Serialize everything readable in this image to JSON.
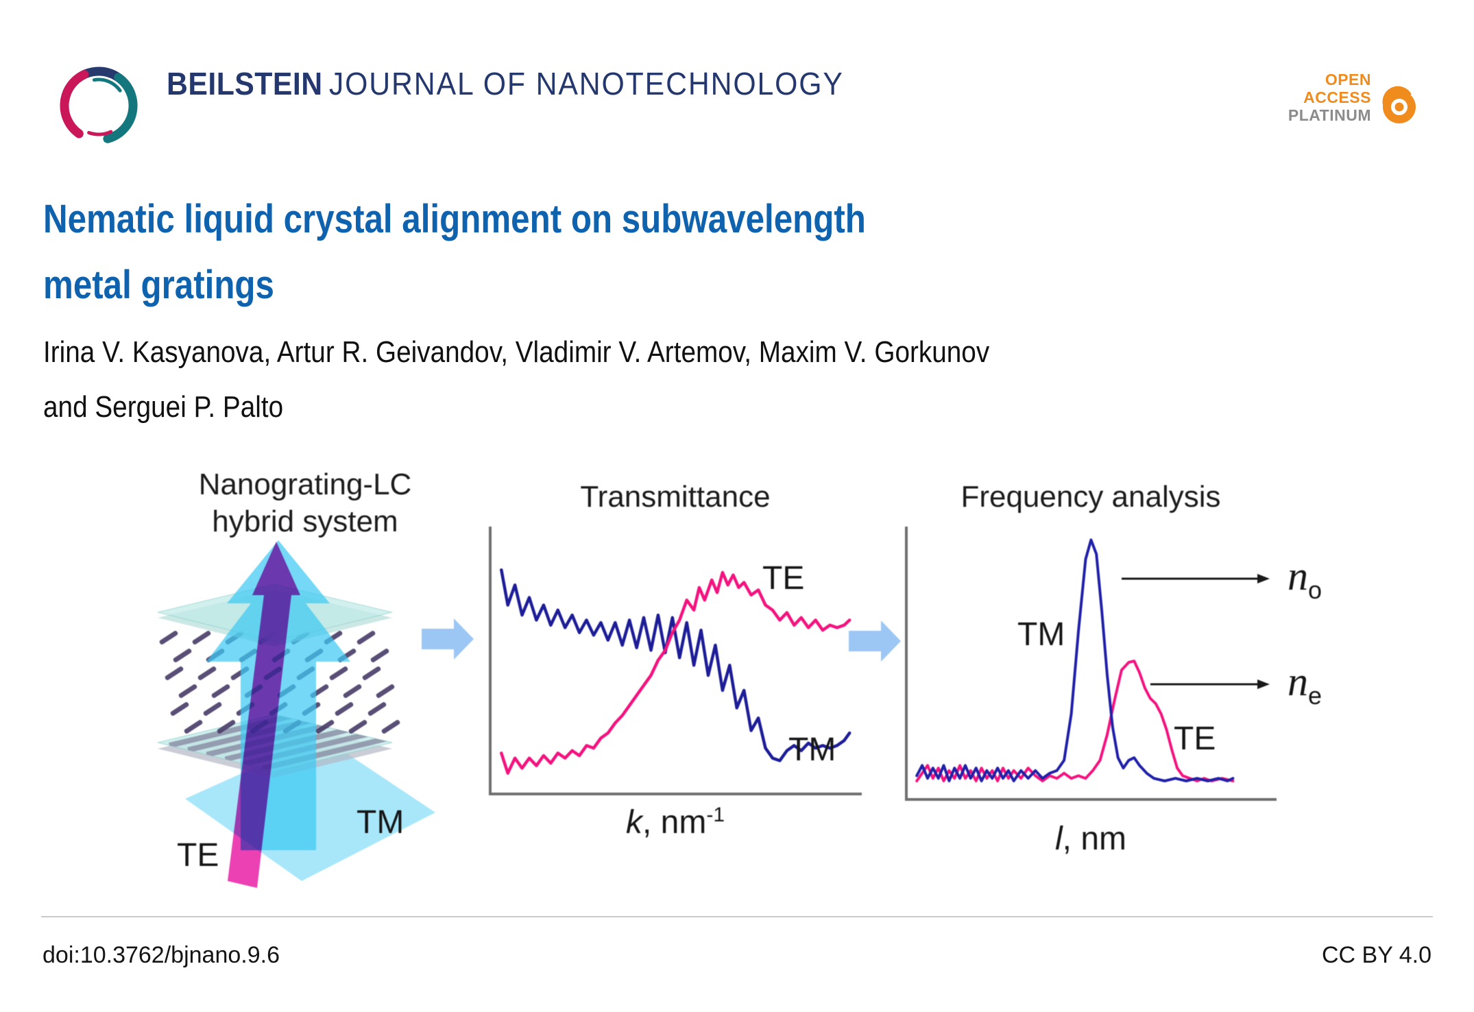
{
  "header": {
    "wordmark_bold": "BEILSTEIN",
    "wordmark_rest": "JOURNAL OF NANOTECHNOLOGY",
    "badge_line1": "OPEN",
    "badge_line2": "ACCESS",
    "badge_line3": "PLATINUM"
  },
  "article": {
    "title_line1": "Nematic liquid crystal alignment on subwavelength",
    "title_line2": "metal gratings",
    "authors_line1": "Irina V. Kasyanova, Artur R. Geivandov, Vladimir V. Artemov, Maxim V. Gorkunov",
    "authors_line2": "and Serguei P. Palto"
  },
  "figure": {
    "left_panel": {
      "title_line1": "Nanograting-LC",
      "title_line2": "hybrid system",
      "label_te": "TE",
      "label_tm": "TM"
    },
    "middle_panel": {
      "title": "Transmittance",
      "label_te": "TE",
      "label_tm": "TM",
      "xlabel_symbol": "k",
      "xlabel_unit": ", nm",
      "xlabel_sup": "-1"
    },
    "right_panel": {
      "title": "Frequency analysis",
      "label_te": "TE",
      "label_tm": "TM",
      "xlabel_symbol": "l",
      "xlabel_unit": ", nm",
      "n_base": "n",
      "n_o_sub": "o",
      "n_e_sub": "e"
    }
  },
  "footer": {
    "doi": "doi:10.3762/bjnano.9.6",
    "license": "CC BY 4.0"
  },
  "colors": {
    "title_blue": "#0f62ad",
    "wordmark_navy": "#25386e",
    "logo_navy": "#283a6d",
    "logo_crimson": "#c9175a",
    "logo_teal": "#15777e",
    "oa_orange": "#f08b1d",
    "platinum_gray": "#8b8b8b",
    "te_pink": "#f3137f",
    "tm_blue": "#1d1d97",
    "connector_blue": "#9cc7f5",
    "cyan_arrow": "#3fc9f3",
    "magenta_arrow": "#e611a0",
    "plate_cyan": "#c2ebe9",
    "lc_dash": "#4b3f69",
    "axis_gray": "#6f6f6f"
  },
  "chart_data": [
    {
      "type": "line",
      "title": "Transmittance",
      "xlabel": "k, nm^-1",
      "ylabel": "",
      "x_axis": {
        "ticks": "none",
        "range_normalized": [
          0,
          1
        ]
      },
      "y_axis": {
        "ticks": "none",
        "range_normalized": [
          0,
          1
        ]
      },
      "grid": false,
      "legend": "in-plot text labels TE (top right) and TM (bottom right)",
      "series": [
        {
          "name": "TM",
          "color": "#1d1d97",
          "width": 4.5,
          "points": [
            [
              0.012,
              0.86
            ],
            [
              0.03,
              0.72
            ],
            [
              0.05,
              0.8
            ],
            [
              0.07,
              0.68
            ],
            [
              0.09,
              0.75
            ],
            [
              0.11,
              0.66
            ],
            [
              0.13,
              0.72
            ],
            [
              0.15,
              0.64
            ],
            [
              0.17,
              0.7
            ],
            [
              0.19,
              0.63
            ],
            [
              0.21,
              0.68
            ],
            [
              0.23,
              0.61
            ],
            [
              0.25,
              0.66
            ],
            [
              0.27,
              0.6
            ],
            [
              0.29,
              0.65
            ],
            [
              0.31,
              0.58
            ],
            [
              0.33,
              0.65
            ],
            [
              0.35,
              0.56
            ],
            [
              0.37,
              0.66
            ],
            [
              0.39,
              0.55
            ],
            [
              0.41,
              0.67
            ],
            [
              0.43,
              0.54
            ],
            [
              0.45,
              0.68
            ],
            [
              0.47,
              0.53
            ],
            [
              0.49,
              0.67
            ],
            [
              0.51,
              0.51
            ],
            [
              0.53,
              0.65
            ],
            [
              0.55,
              0.48
            ],
            [
              0.57,
              0.62
            ],
            [
              0.59,
              0.44
            ],
            [
              0.61,
              0.56
            ],
            [
              0.63,
              0.38
            ],
            [
              0.65,
              0.48
            ],
            [
              0.67,
              0.31
            ],
            [
              0.69,
              0.38
            ],
            [
              0.71,
              0.22
            ],
            [
              0.73,
              0.27
            ],
            [
              0.75,
              0.15
            ],
            [
              0.77,
              0.11
            ],
            [
              0.79,
              0.1
            ],
            [
              0.81,
              0.14
            ],
            [
              0.83,
              0.16
            ],
            [
              0.85,
              0.14
            ],
            [
              0.87,
              0.17
            ],
            [
              0.89,
              0.15
            ],
            [
              0.91,
              0.16
            ],
            [
              0.93,
              0.15
            ],
            [
              0.95,
              0.16
            ],
            [
              0.97,
              0.18
            ],
            [
              0.985,
              0.21
            ]
          ]
        },
        {
          "name": "TE",
          "color": "#f3137f",
          "width": 4.5,
          "points": [
            [
              0.012,
              0.13
            ],
            [
              0.03,
              0.05
            ],
            [
              0.05,
              0.11
            ],
            [
              0.07,
              0.07
            ],
            [
              0.09,
              0.11
            ],
            [
              0.11,
              0.08
            ],
            [
              0.13,
              0.12
            ],
            [
              0.15,
              0.09
            ],
            [
              0.17,
              0.13
            ],
            [
              0.19,
              0.11
            ],
            [
              0.21,
              0.14
            ],
            [
              0.23,
              0.12
            ],
            [
              0.25,
              0.16
            ],
            [
              0.27,
              0.15
            ],
            [
              0.29,
              0.19
            ],
            [
              0.31,
              0.21
            ],
            [
              0.33,
              0.25
            ],
            [
              0.35,
              0.28
            ],
            [
              0.37,
              0.32
            ],
            [
              0.39,
              0.36
            ],
            [
              0.41,
              0.4
            ],
            [
              0.43,
              0.44
            ],
            [
              0.45,
              0.5
            ],
            [
              0.47,
              0.54
            ],
            [
              0.49,
              0.61
            ],
            [
              0.51,
              0.66
            ],
            [
              0.53,
              0.74
            ],
            [
              0.55,
              0.7
            ],
            [
              0.565,
              0.79
            ],
            [
              0.58,
              0.74
            ],
            [
              0.6,
              0.82
            ],
            [
              0.615,
              0.77
            ],
            [
              0.63,
              0.85
            ],
            [
              0.645,
              0.8
            ],
            [
              0.66,
              0.84
            ],
            [
              0.675,
              0.79
            ],
            [
              0.69,
              0.81
            ],
            [
              0.71,
              0.76
            ],
            [
              0.73,
              0.78
            ],
            [
              0.75,
              0.72
            ],
            [
              0.77,
              0.7
            ],
            [
              0.79,
              0.66
            ],
            [
              0.81,
              0.69
            ],
            [
              0.83,
              0.64
            ],
            [
              0.85,
              0.67
            ],
            [
              0.87,
              0.63
            ],
            [
              0.89,
              0.66
            ],
            [
              0.91,
              0.62
            ],
            [
              0.93,
              0.64
            ],
            [
              0.95,
              0.63
            ],
            [
              0.97,
              0.64
            ],
            [
              0.985,
              0.66
            ]
          ]
        }
      ]
    },
    {
      "type": "line",
      "title": "Frequency analysis",
      "xlabel": "l, nm",
      "ylabel": "",
      "x_axis": {
        "ticks": "none",
        "range_normalized": [
          0,
          1
        ]
      },
      "y_axis": {
        "ticks": "none",
        "range_normalized": [
          0,
          1
        ]
      },
      "grid": false,
      "legend": "in-plot text labels TM (left of blue peak) and TE (right of pink peak)",
      "annotations": [
        {
          "type": "arrow",
          "from_xy_normalized": [
            0.59,
            0.815
          ],
          "to_label": "n_o",
          "meaning": "ordinary refractive index from TM peak"
        },
        {
          "type": "arrow",
          "from_xy_normalized": [
            0.67,
            0.424
          ],
          "to_label": "n_e",
          "meaning": "extraordinary refractive index from TE peak"
        }
      ],
      "series": [
        {
          "name": "TE",
          "color": "#f3137f",
          "width": 4,
          "points": [
            [
              0.01,
              0.04
            ],
            [
              0.025,
              0.07
            ],
            [
              0.04,
              0.1
            ],
            [
              0.055,
              0.05
            ],
            [
              0.07,
              0.09
            ],
            [
              0.085,
              0.04
            ],
            [
              0.1,
              0.08
            ],
            [
              0.115,
              0.05
            ],
            [
              0.13,
              0.1
            ],
            [
              0.145,
              0.05
            ],
            [
              0.16,
              0.08
            ],
            [
              0.175,
              0.04
            ],
            [
              0.19,
              0.09
            ],
            [
              0.205,
              0.05
            ],
            [
              0.22,
              0.08
            ],
            [
              0.235,
              0.04
            ],
            [
              0.25,
              0.09
            ],
            [
              0.265,
              0.05
            ],
            [
              0.28,
              0.08
            ],
            [
              0.3,
              0.05
            ],
            [
              0.32,
              0.09
            ],
            [
              0.34,
              0.06
            ],
            [
              0.36,
              0.04
            ],
            [
              0.38,
              0.06
            ],
            [
              0.4,
              0.05
            ],
            [
              0.42,
              0.07
            ],
            [
              0.44,
              0.05
            ],
            [
              0.46,
              0.06
            ],
            [
              0.48,
              0.05
            ],
            [
              0.5,
              0.08
            ],
            [
              0.52,
              0.12
            ],
            [
              0.54,
              0.22
            ],
            [
              0.56,
              0.35
            ],
            [
              0.58,
              0.47
            ],
            [
              0.6,
              0.5
            ],
            [
              0.615,
              0.505
            ],
            [
              0.63,
              0.46
            ],
            [
              0.645,
              0.4
            ],
            [
              0.66,
              0.36
            ],
            [
              0.675,
              0.34
            ],
            [
              0.69,
              0.3
            ],
            [
              0.705,
              0.24
            ],
            [
              0.72,
              0.16
            ],
            [
              0.735,
              0.09
            ],
            [
              0.75,
              0.06
            ],
            [
              0.77,
              0.05
            ],
            [
              0.79,
              0.04
            ],
            [
              0.81,
              0.05
            ],
            [
              0.83,
              0.04
            ],
            [
              0.86,
              0.05
            ],
            [
              0.89,
              0.04
            ]
          ]
        },
        {
          "name": "TM",
          "color": "#2020a8",
          "width": 4,
          "points": [
            [
              0.01,
              0.06
            ],
            [
              0.025,
              0.1
            ],
            [
              0.04,
              0.05
            ],
            [
              0.055,
              0.09
            ],
            [
              0.07,
              0.05
            ],
            [
              0.085,
              0.1
            ],
            [
              0.1,
              0.04
            ],
            [
              0.115,
              0.09
            ],
            [
              0.13,
              0.05
            ],
            [
              0.145,
              0.1
            ],
            [
              0.16,
              0.05
            ],
            [
              0.175,
              0.09
            ],
            [
              0.19,
              0.04
            ],
            [
              0.205,
              0.08
            ],
            [
              0.22,
              0.05
            ],
            [
              0.235,
              0.09
            ],
            [
              0.25,
              0.05
            ],
            [
              0.265,
              0.08
            ],
            [
              0.28,
              0.04
            ],
            [
              0.3,
              0.08
            ],
            [
              0.32,
              0.05
            ],
            [
              0.34,
              0.08
            ],
            [
              0.36,
              0.05
            ],
            [
              0.38,
              0.07
            ],
            [
              0.4,
              0.08
            ],
            [
              0.42,
              0.12
            ],
            [
              0.44,
              0.3
            ],
            [
              0.46,
              0.62
            ],
            [
              0.48,
              0.9
            ],
            [
              0.495,
              0.975
            ],
            [
              0.51,
              0.92
            ],
            [
              0.525,
              0.7
            ],
            [
              0.54,
              0.45
            ],
            [
              0.555,
              0.25
            ],
            [
              0.57,
              0.13
            ],
            [
              0.585,
              0.09
            ],
            [
              0.6,
              0.12
            ],
            [
              0.615,
              0.13
            ],
            [
              0.63,
              0.1
            ],
            [
              0.65,
              0.07
            ],
            [
              0.67,
              0.05
            ],
            [
              0.7,
              0.04
            ],
            [
              0.73,
              0.05
            ],
            [
              0.76,
              0.04
            ],
            [
              0.79,
              0.05
            ],
            [
              0.82,
              0.04
            ],
            [
              0.85,
              0.05
            ],
            [
              0.875,
              0.04
            ],
            [
              0.89,
              0.05
            ]
          ]
        }
      ]
    }
  ]
}
